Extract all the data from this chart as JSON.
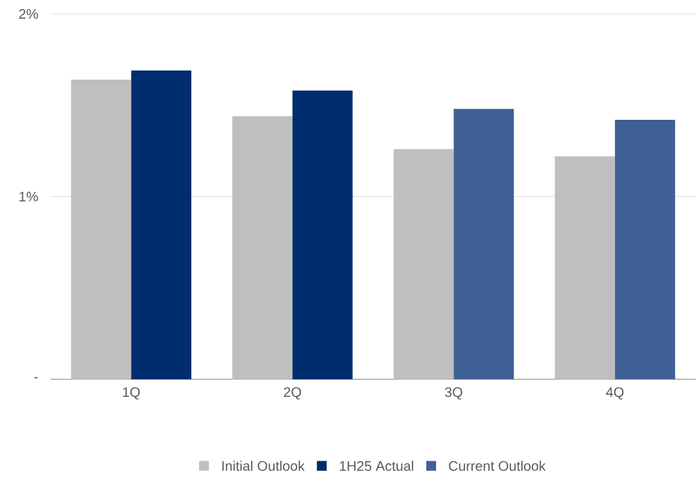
{
  "chart_data": {
    "type": "bar",
    "categories": [
      "1Q",
      "2Q",
      "3Q",
      "4Q"
    ],
    "series": [
      {
        "name": "Initial Outlook",
        "color": "#bfbfbf",
        "values": [
          1.64,
          1.44,
          1.26,
          1.22
        ]
      },
      {
        "name": "1H25 Actual",
        "color": "#002d6e",
        "values": [
          1.69,
          1.58,
          null,
          null
        ]
      },
      {
        "name": "Current Outlook",
        "color": "#3f6095",
        "values": [
          null,
          null,
          1.48,
          1.42
        ]
      }
    ],
    "ylim": [
      0,
      2
    ],
    "yticks": [
      {
        "value": 0,
        "label": "-"
      },
      {
        "value": 1,
        "label": "1%"
      },
      {
        "value": 2,
        "label": "2%"
      }
    ],
    "grid": "y",
    "legend": "bottom"
  }
}
